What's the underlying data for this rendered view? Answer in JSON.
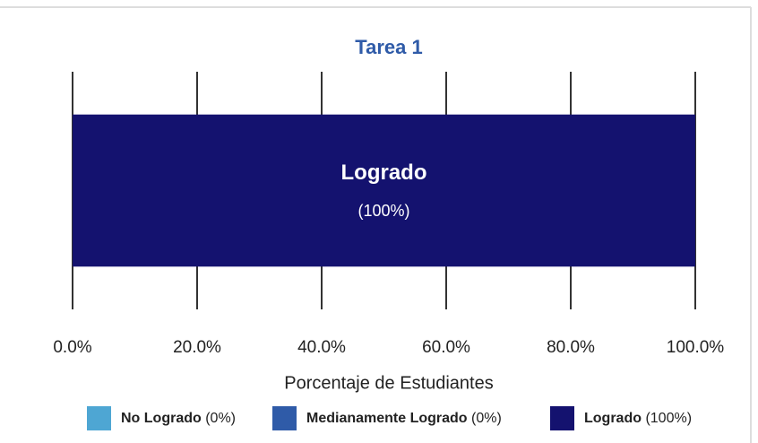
{
  "chart_data": {
    "type": "stacked-bar-horizontal",
    "title": "Tarea 1",
    "x_label": "Porcentaje de Estudiantes",
    "categories": [
      null
    ],
    "series": [
      {
        "name": "No Logrado",
        "color": "#4ea6d3",
        "values": [
          0
        ],
        "value_labels": [
          "(0%)"
        ]
      },
      {
        "name": "Medianamente Logrado",
        "color": "#2f5ba8",
        "values": [
          0
        ],
        "value_labels": [
          "(0%)"
        ]
      },
      {
        "name": "Logrado",
        "color": "#14126f",
        "values": [
          100
        ],
        "value_labels": [
          "(100%)"
        ]
      }
    ],
    "xlim": [
      0,
      100
    ],
    "xticks": [
      {
        "value": 0,
        "label": "0.0%"
      },
      {
        "value": 20,
        "label": "20.0%"
      },
      {
        "value": 40,
        "label": "40.0%"
      },
      {
        "value": 60,
        "label": "60.0%"
      },
      {
        "value": 80,
        "label": "80.0%"
      },
      {
        "value": 100,
        "label": "100.0%"
      }
    ],
    "grid": true,
    "legend": "bottom"
  }
}
